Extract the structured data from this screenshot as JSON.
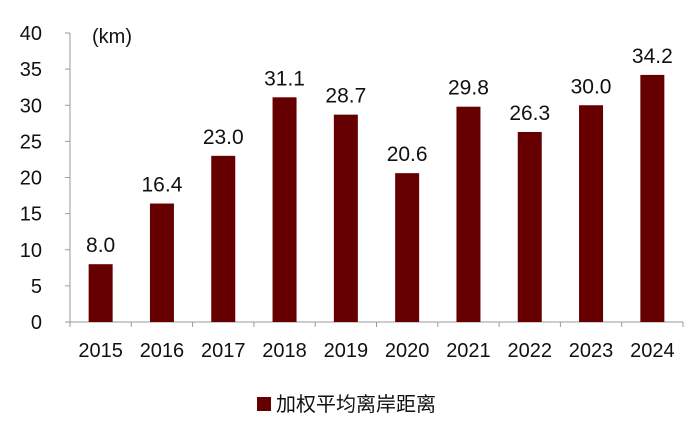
{
  "chart_data": {
    "type": "bar",
    "categories": [
      "2015",
      "2016",
      "2017",
      "2018",
      "2019",
      "2020",
      "2021",
      "2022",
      "2023",
      "2024"
    ],
    "values": [
      8.0,
      16.4,
      23.0,
      31.1,
      28.7,
      20.6,
      29.8,
      26.3,
      30.0,
      34.2
    ],
    "data_labels": [
      "8.0",
      "16.4",
      "23.0",
      "31.1",
      "28.7",
      "20.6",
      "29.8",
      "26.3",
      "30.0",
      "34.2"
    ],
    "y_ticks": [
      0,
      5,
      10,
      15,
      20,
      25,
      30,
      35,
      40
    ],
    "ylim": [
      0,
      40
    ],
    "ylabel": "(km)",
    "xlabel": "",
    "title": "",
    "legend": {
      "label": "加权平均离岸距离",
      "position": "bottom-center"
    },
    "bar_color": "#660000",
    "grid": false
  }
}
